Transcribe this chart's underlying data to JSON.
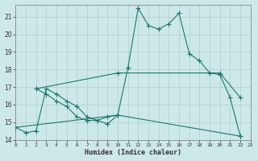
{
  "title": "",
  "xlabel": "Humidex (Indice chaleur)",
  "ylabel": "",
  "bg_color": "#cde8e8",
  "grid_color": "#b0cccc",
  "line_color": "#1a7a6e",
  "xlim": [
    0,
    23
  ],
  "ylim": [
    14,
    21.7
  ],
  "yticks": [
    14,
    15,
    16,
    17,
    18,
    19,
    20,
    21
  ],
  "xticks": [
    0,
    1,
    2,
    3,
    4,
    5,
    6,
    7,
    8,
    9,
    10,
    11,
    12,
    13,
    14,
    15,
    16,
    17,
    18,
    19,
    20,
    21,
    22,
    23
  ],
  "series": [
    {
      "name": "main_curve",
      "x": [
        0,
        1,
        2,
        3,
        4,
        5,
        6,
        7,
        8,
        9,
        10,
        11,
        12,
        13,
        14,
        15,
        16,
        17,
        18,
        19,
        20,
        21,
        22
      ],
      "y": [
        14.7,
        14.4,
        14.5,
        16.9,
        16.6,
        16.2,
        15.9,
        15.3,
        15.1,
        14.9,
        15.4,
        18.1,
        21.5,
        20.5,
        20.3,
        20.6,
        21.2,
        18.9,
        18.5,
        17.8,
        17.7,
        16.4,
        14.2
      ]
    },
    {
      "name": "lower_loop",
      "x": [
        2,
        3,
        4,
        5,
        6,
        7,
        8,
        9,
        10
      ],
      "y": [
        16.9,
        16.6,
        16.2,
        15.9,
        15.3,
        15.1,
        15.1,
        15.3,
        15.4
      ]
    },
    {
      "name": "upper_envelope",
      "x": [
        2,
        10,
        20,
        22
      ],
      "y": [
        16.9,
        17.8,
        17.8,
        16.4
      ]
    },
    {
      "name": "lower_envelope",
      "x": [
        0,
        10,
        22
      ],
      "y": [
        14.7,
        15.4,
        14.2
      ]
    }
  ]
}
